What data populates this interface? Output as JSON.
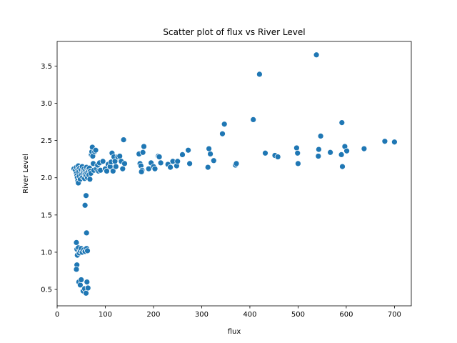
{
  "chart_data": {
    "type": "scatter",
    "title": "Scatter plot of flux vs River Level",
    "xlabel": "flux",
    "ylabel": "River Level",
    "xlim": [
      0,
      735
    ],
    "ylim": [
      0.28,
      3.83
    ],
    "xticks": [
      0,
      100,
      200,
      300,
      400,
      500,
      600,
      700
    ],
    "xtick_labels": [
      "0",
      "100",
      "200",
      "300",
      "400",
      "500",
      "600",
      "700"
    ],
    "yticks": [
      0.5,
      1.0,
      1.5,
      2.0,
      2.5,
      3.0,
      3.5
    ],
    "ytick_labels": [
      "0.5",
      "1.0",
      "1.5",
      "2.0",
      "2.5",
      "3.0",
      "3.5"
    ],
    "grid": false,
    "legend": "none",
    "marker_color": "#1f77b4",
    "series": [
      {
        "points": [
          [
            35,
            2.12
          ],
          [
            38,
            2.1
          ],
          [
            40,
            2.14
          ],
          [
            40,
            2.06
          ],
          [
            41,
            2.03
          ],
          [
            42,
            2.0
          ],
          [
            43,
            2.11
          ],
          [
            43,
            1.96
          ],
          [
            44,
            1.93
          ],
          [
            44,
            2.16
          ],
          [
            45,
            2.08
          ],
          [
            46,
            2.02
          ],
          [
            47,
            2.13
          ],
          [
            48,
            1.98
          ],
          [
            49,
            2.07
          ],
          [
            50,
            2.11
          ],
          [
            51,
            2.04
          ],
          [
            52,
            2.15
          ],
          [
            53,
            2.01
          ],
          [
            54,
            2.09
          ],
          [
            55,
            2.06
          ],
          [
            56,
            2.12
          ],
          [
            57,
            1.99
          ],
          [
            58,
            2.05
          ],
          [
            59,
            2.1
          ],
          [
            60,
            2.03
          ],
          [
            61,
            2.14
          ],
          [
            62,
            2.07
          ],
          [
            63,
            2.0
          ],
          [
            64,
            2.11
          ],
          [
            65,
            2.08
          ],
          [
            66,
            2.04
          ],
          [
            67,
            2.13
          ],
          [
            68,
            1.98
          ],
          [
            69,
            2.09
          ],
          [
            70,
            2.06
          ],
          [
            71,
            2.31
          ],
          [
            72,
            2.35
          ],
          [
            73,
            2.41
          ],
          [
            74,
            2.29
          ],
          [
            75,
            2.19
          ],
          [
            76,
            2.1
          ],
          [
            78,
            2.35
          ],
          [
            80,
            2.37
          ],
          [
            82,
            2.12
          ],
          [
            84,
            2.17
          ],
          [
            86,
            2.09
          ],
          [
            88,
            2.2
          ],
          [
            90,
            2.1
          ],
          [
            95,
            2.22
          ],
          [
            100,
            2.12
          ],
          [
            103,
            2.09
          ],
          [
            106,
            2.18
          ],
          [
            110,
            2.15
          ],
          [
            112,
            2.21
          ],
          [
            114,
            2.33
          ],
          [
            116,
            2.09
          ],
          [
            118,
            2.28
          ],
          [
            120,
            2.22
          ],
          [
            122,
            2.15
          ],
          [
            126,
            2.28
          ],
          [
            130,
            2.29
          ],
          [
            133,
            2.22
          ],
          [
            136,
            2.12
          ],
          [
            138,
            2.51
          ],
          [
            140,
            2.19
          ],
          [
            60,
            1.76
          ],
          [
            58,
            1.63
          ],
          [
            61,
            1.26
          ],
          [
            40,
            1.13
          ],
          [
            41,
            1.04
          ],
          [
            42,
            0.96
          ],
          [
            44,
            1.06
          ],
          [
            46,
            0.99
          ],
          [
            48,
            1.02
          ],
          [
            50,
            1.05
          ],
          [
            52,
            1.0
          ],
          [
            55,
            1.03
          ],
          [
            58,
            1.01
          ],
          [
            61,
            1.05
          ],
          [
            63,
            1.02
          ],
          [
            41,
            0.83
          ],
          [
            40,
            0.77
          ],
          [
            45,
            0.6
          ],
          [
            48,
            0.56
          ],
          [
            50,
            0.63
          ],
          [
            54,
            0.48
          ],
          [
            57,
            0.51
          ],
          [
            60,
            0.45
          ],
          [
            62,
            0.6
          ],
          [
            64,
            0.52
          ],
          [
            170,
            2.32
          ],
          [
            172,
            2.19
          ],
          [
            174,
            2.16
          ],
          [
            176,
            2.1
          ],
          [
            178,
            2.34
          ],
          [
            180,
            2.42
          ],
          [
            175,
            2.08
          ],
          [
            190,
            2.12
          ],
          [
            195,
            2.2
          ],
          [
            200,
            2.15
          ],
          [
            203,
            2.12
          ],
          [
            210,
            2.29
          ],
          [
            212,
            2.28
          ],
          [
            215,
            2.2
          ],
          [
            230,
            2.18
          ],
          [
            235,
            2.14
          ],
          [
            240,
            2.22
          ],
          [
            248,
            2.16
          ],
          [
            250,
            2.22
          ],
          [
            260,
            2.31
          ],
          [
            272,
            2.37
          ],
          [
            275,
            2.19
          ],
          [
            315,
            2.39
          ],
          [
            318,
            2.32
          ],
          [
            313,
            2.14
          ],
          [
            325,
            2.23
          ],
          [
            343,
            2.59
          ],
          [
            347,
            2.72
          ],
          [
            370,
            2.17
          ],
          [
            372,
            2.19
          ],
          [
            407,
            2.78
          ],
          [
            420,
            3.39
          ],
          [
            432,
            2.33
          ],
          [
            452,
            2.3
          ],
          [
            458,
            2.28
          ],
          [
            497,
            2.4
          ],
          [
            499,
            2.33
          ],
          [
            500,
            2.19
          ],
          [
            538,
            3.65
          ],
          [
            542,
            2.29
          ],
          [
            543,
            2.38
          ],
          [
            547,
            2.56
          ],
          [
            567,
            2.34
          ],
          [
            590,
            2.31
          ],
          [
            591,
            2.74
          ],
          [
            592,
            2.15
          ],
          [
            597,
            2.42
          ],
          [
            601,
            2.36
          ],
          [
            637,
            2.39
          ],
          [
            680,
            2.49
          ],
          [
            700,
            2.48
          ]
        ]
      }
    ]
  }
}
